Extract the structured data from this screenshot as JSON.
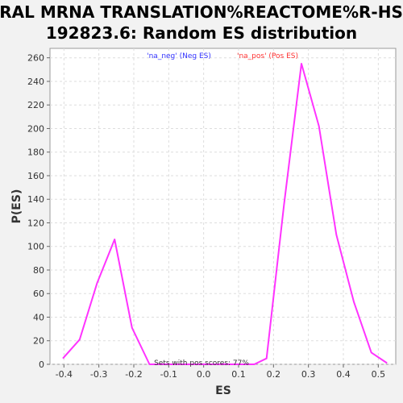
{
  "chart_data": {
    "type": "line",
    "title_line1": "VIRAL MRNA TRANSLATION%REACTOME%R-HSA-",
    "title_line2": "192823.6: Random ES distribution",
    "xlabel": "ES",
    "ylabel": "P(ES)",
    "xlim": [
      -0.44,
      0.55
    ],
    "ylim": [
      0,
      268
    ],
    "x_ticks": [
      -0.4,
      -0.3,
      -0.2,
      -0.1,
      0.0,
      0.1,
      0.2,
      0.3,
      0.4,
      0.5
    ],
    "x_tick_labels": [
      "-0.4",
      "-0.3",
      "-0.2",
      "-0.1",
      "0.0",
      "0.1",
      "0.2",
      "0.3",
      "0.4",
      "0.5"
    ],
    "y_ticks": [
      0,
      20,
      40,
      60,
      80,
      100,
      120,
      140,
      160,
      180,
      200,
      220,
      240,
      260
    ],
    "y_tick_labels": [
      "0",
      "20",
      "40",
      "60",
      "80",
      "100",
      "120",
      "140",
      "160",
      "180",
      "200",
      "220",
      "240",
      "260"
    ],
    "grid": true,
    "series": [
      {
        "color": "#ff33ff",
        "x": [
          -0.403,
          -0.355,
          -0.305,
          -0.255,
          -0.205,
          -0.155,
          -0.105,
          -0.055,
          -0.005,
          0.045,
          0.095,
          0.145,
          0.18,
          0.23,
          0.28,
          0.33,
          0.38,
          0.43,
          0.48,
          0.525
        ],
        "y": [
          5,
          21,
          69,
          106,
          31,
          0,
          0,
          0,
          0,
          0,
          0,
          0,
          5,
          135,
          255,
          202,
          110,
          53,
          10,
          1
        ]
      }
    ],
    "legend": [
      {
        "label": "'na_neg' (Neg ES)",
        "color": "#3333ff"
      },
      {
        "label": "'na_pos' (Pos ES)",
        "color": "#ff3333"
      }
    ],
    "annotation": "Sets with pos scores: 77%"
  }
}
